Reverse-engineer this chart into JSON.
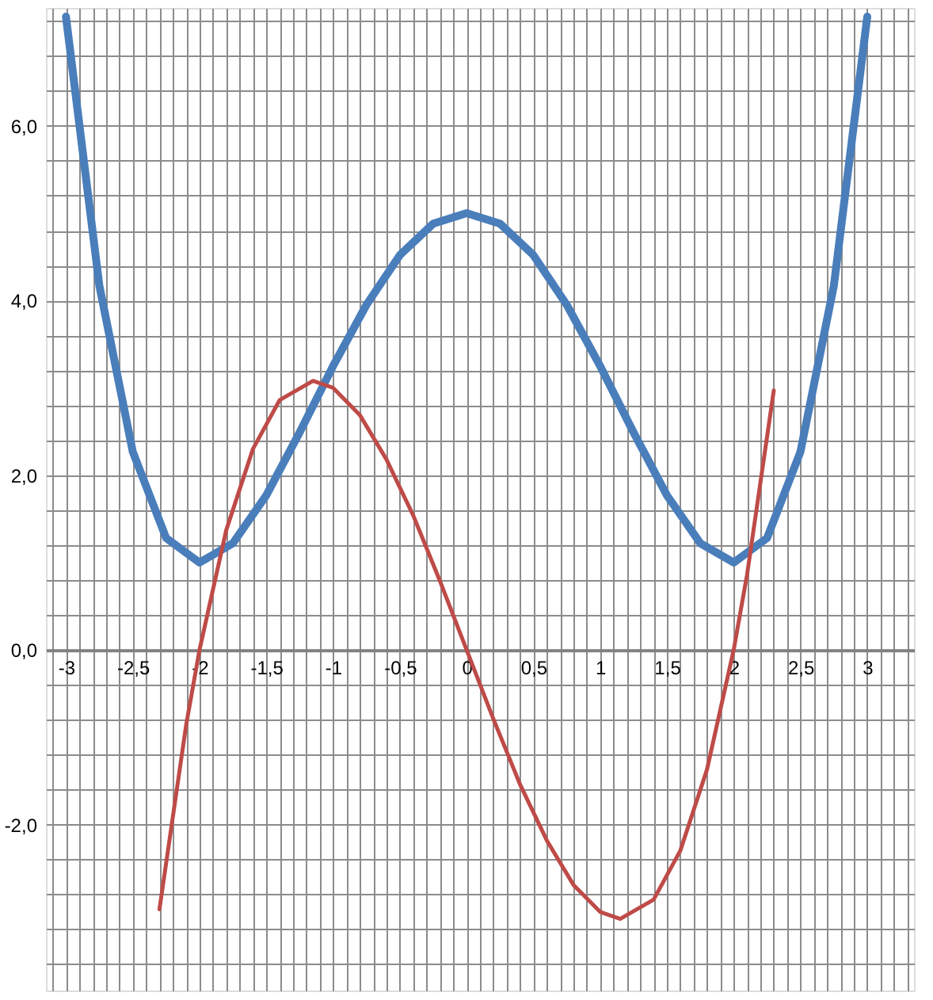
{
  "chart_data": {
    "type": "line",
    "grid": true,
    "marker": "none",
    "line_style": "solid",
    "xlim": [
      -3.15,
      3.35
    ],
    "ylim": [
      -3.9,
      7.35
    ],
    "xticks": [
      {
        "value": -3.1,
        "label": null
      },
      -3,
      {
        "value": -2.9,
        "label": null
      },
      {
        "value": -2.8,
        "label": null
      },
      {
        "value": -2.7,
        "label": null
      },
      {
        "value": -2.6,
        "label": null
      },
      {
        "value": -2.5,
        "label": "-2,5"
      },
      {
        "value": -2.4,
        "label": null
      },
      {
        "value": -2.3,
        "label": null
      },
      {
        "value": -2.2,
        "label": null
      },
      {
        "value": -2.1,
        "label": null
      },
      -2,
      {
        "value": -1.9,
        "label": null
      },
      {
        "value": -1.8,
        "label": null
      },
      {
        "value": -1.7,
        "label": null
      },
      {
        "value": -1.6,
        "label": null
      },
      {
        "value": -1.5,
        "label": "-1,5"
      },
      {
        "value": -1.4,
        "label": null
      },
      {
        "value": -1.3,
        "label": null
      },
      {
        "value": -1.2,
        "label": null
      },
      {
        "value": -1.1,
        "label": null
      },
      -1,
      {
        "value": -0.9,
        "label": null
      },
      {
        "value": -0.8,
        "label": null
      },
      {
        "value": -0.7,
        "label": null
      },
      {
        "value": -0.6,
        "label": null
      },
      {
        "value": -0.5,
        "label": "-0,5"
      },
      {
        "value": -0.4,
        "label": null
      },
      {
        "value": -0.3,
        "label": null
      },
      {
        "value": -0.2,
        "label": null
      },
      {
        "value": -0.1,
        "label": null
      },
      0,
      {
        "value": 0.1,
        "label": null
      },
      {
        "value": 0.2,
        "label": null
      },
      {
        "value": 0.3,
        "label": null
      },
      {
        "value": 0.4,
        "label": null
      },
      {
        "value": 0.5,
        "label": "0,5"
      },
      {
        "value": 0.6,
        "label": null
      },
      {
        "value": 0.7,
        "label": null
      },
      {
        "value": 0.8,
        "label": null
      },
      {
        "value": 0.9,
        "label": null
      },
      1,
      {
        "value": 1.1,
        "label": null
      },
      {
        "value": 1.2,
        "label": null
      },
      {
        "value": 1.3,
        "label": null
      },
      {
        "value": 1.4,
        "label": null
      },
      {
        "value": 1.5,
        "label": "1,5"
      },
      {
        "value": 1.6,
        "label": null
      },
      {
        "value": 1.7,
        "label": null
      },
      {
        "value": 1.8,
        "label": null
      },
      {
        "value": 1.9,
        "label": null
      },
      2,
      {
        "value": 2.1,
        "label": null
      },
      {
        "value": 2.2,
        "label": null
      },
      {
        "value": 2.3,
        "label": null
      },
      {
        "value": 2.4,
        "label": null
      },
      {
        "value": 2.5,
        "label": "2,5"
      },
      {
        "value": 2.6,
        "label": null
      },
      {
        "value": 2.7,
        "label": null
      },
      {
        "value": 2.8,
        "label": null
      },
      {
        "value": 2.9,
        "label": null
      },
      3,
      {
        "value": 3.1,
        "label": null
      },
      {
        "value": 3.2,
        "label": null
      },
      {
        "value": 3.3,
        "label": null
      }
    ],
    "yticks": [
      {
        "value": -3.6,
        "label": null
      },
      {
        "value": -3.2,
        "label": null
      },
      {
        "value": -2.8,
        "label": null
      },
      {
        "value": -2.4,
        "label": null
      },
      {
        "value": -2,
        "label": "-2,0"
      },
      {
        "value": -1.6,
        "label": null
      },
      {
        "value": -1.2,
        "label": null
      },
      {
        "value": -0.8,
        "label": null
      },
      {
        "value": -0.4,
        "label": null
      },
      {
        "value": 0,
        "label": "0,0"
      },
      {
        "value": 0.4,
        "label": null
      },
      {
        "value": 0.8,
        "label": null
      },
      {
        "value": 1.2,
        "label": null
      },
      {
        "value": 1.6,
        "label": null
      },
      {
        "value": 2,
        "label": "2,0"
      },
      {
        "value": 2.4,
        "label": null
      },
      {
        "value": 2.8,
        "label": null
      },
      {
        "value": 3.2,
        "label": null
      },
      {
        "value": 3.6,
        "label": null
      },
      {
        "value": 4,
        "label": "4,0"
      },
      {
        "value": 4.4,
        "label": null
      },
      {
        "value": 4.8,
        "label": null
      },
      {
        "value": 5.2,
        "label": null
      },
      {
        "value": 5.6,
        "label": null
      },
      {
        "value": 6,
        "label": "6,0"
      },
      {
        "value": 6.4,
        "label": null
      },
      {
        "value": 6.8,
        "label": null
      },
      {
        "value": 7.2,
        "label": null
      }
    ],
    "series": [
      {
        "color": "#4a7ebb",
        "x": [
          -3,
          -2.75,
          -2.5,
          -2.25,
          -2,
          -1.75,
          -1.5,
          -1.25,
          -1,
          -0.75,
          -0.5,
          -0.25,
          0,
          0.25,
          0.5,
          0.75,
          1,
          1.25,
          1.5,
          1.75,
          2,
          2.25,
          2.5,
          2.75,
          3
        ],
        "values": [
          7.25,
          4.17,
          2.27,
          1.28,
          1.0,
          1.22,
          1.77,
          2.49,
          3.25,
          3.95,
          4.52,
          4.88,
          5.0,
          4.88,
          4.52,
          3.95,
          3.25,
          2.49,
          1.77,
          1.22,
          1.0,
          1.28,
          2.27,
          4.17,
          7.25
        ]
      },
      {
        "color": "#be4b48",
        "x": [
          -2.3,
          -2.1,
          -2,
          -1.8,
          -1.6,
          -1.4,
          -1.15,
          -1,
          -0.8,
          -0.6,
          -0.4,
          -0.2,
          0,
          0.2,
          0.4,
          0.6,
          0.8,
          1,
          1.15,
          1.4,
          1.6,
          1.8,
          2,
          2.1,
          2.3
        ],
        "values": [
          -2.97,
          -0.86,
          0.0,
          1.37,
          2.3,
          2.86,
          3.08,
          3.0,
          2.69,
          2.18,
          1.54,
          0.79,
          0.0,
          -0.79,
          -1.54,
          -2.18,
          -2.69,
          -3.0,
          -3.08,
          -2.86,
          -2.3,
          -1.37,
          0.0,
          0.86,
          2.97
        ]
      }
    ]
  }
}
